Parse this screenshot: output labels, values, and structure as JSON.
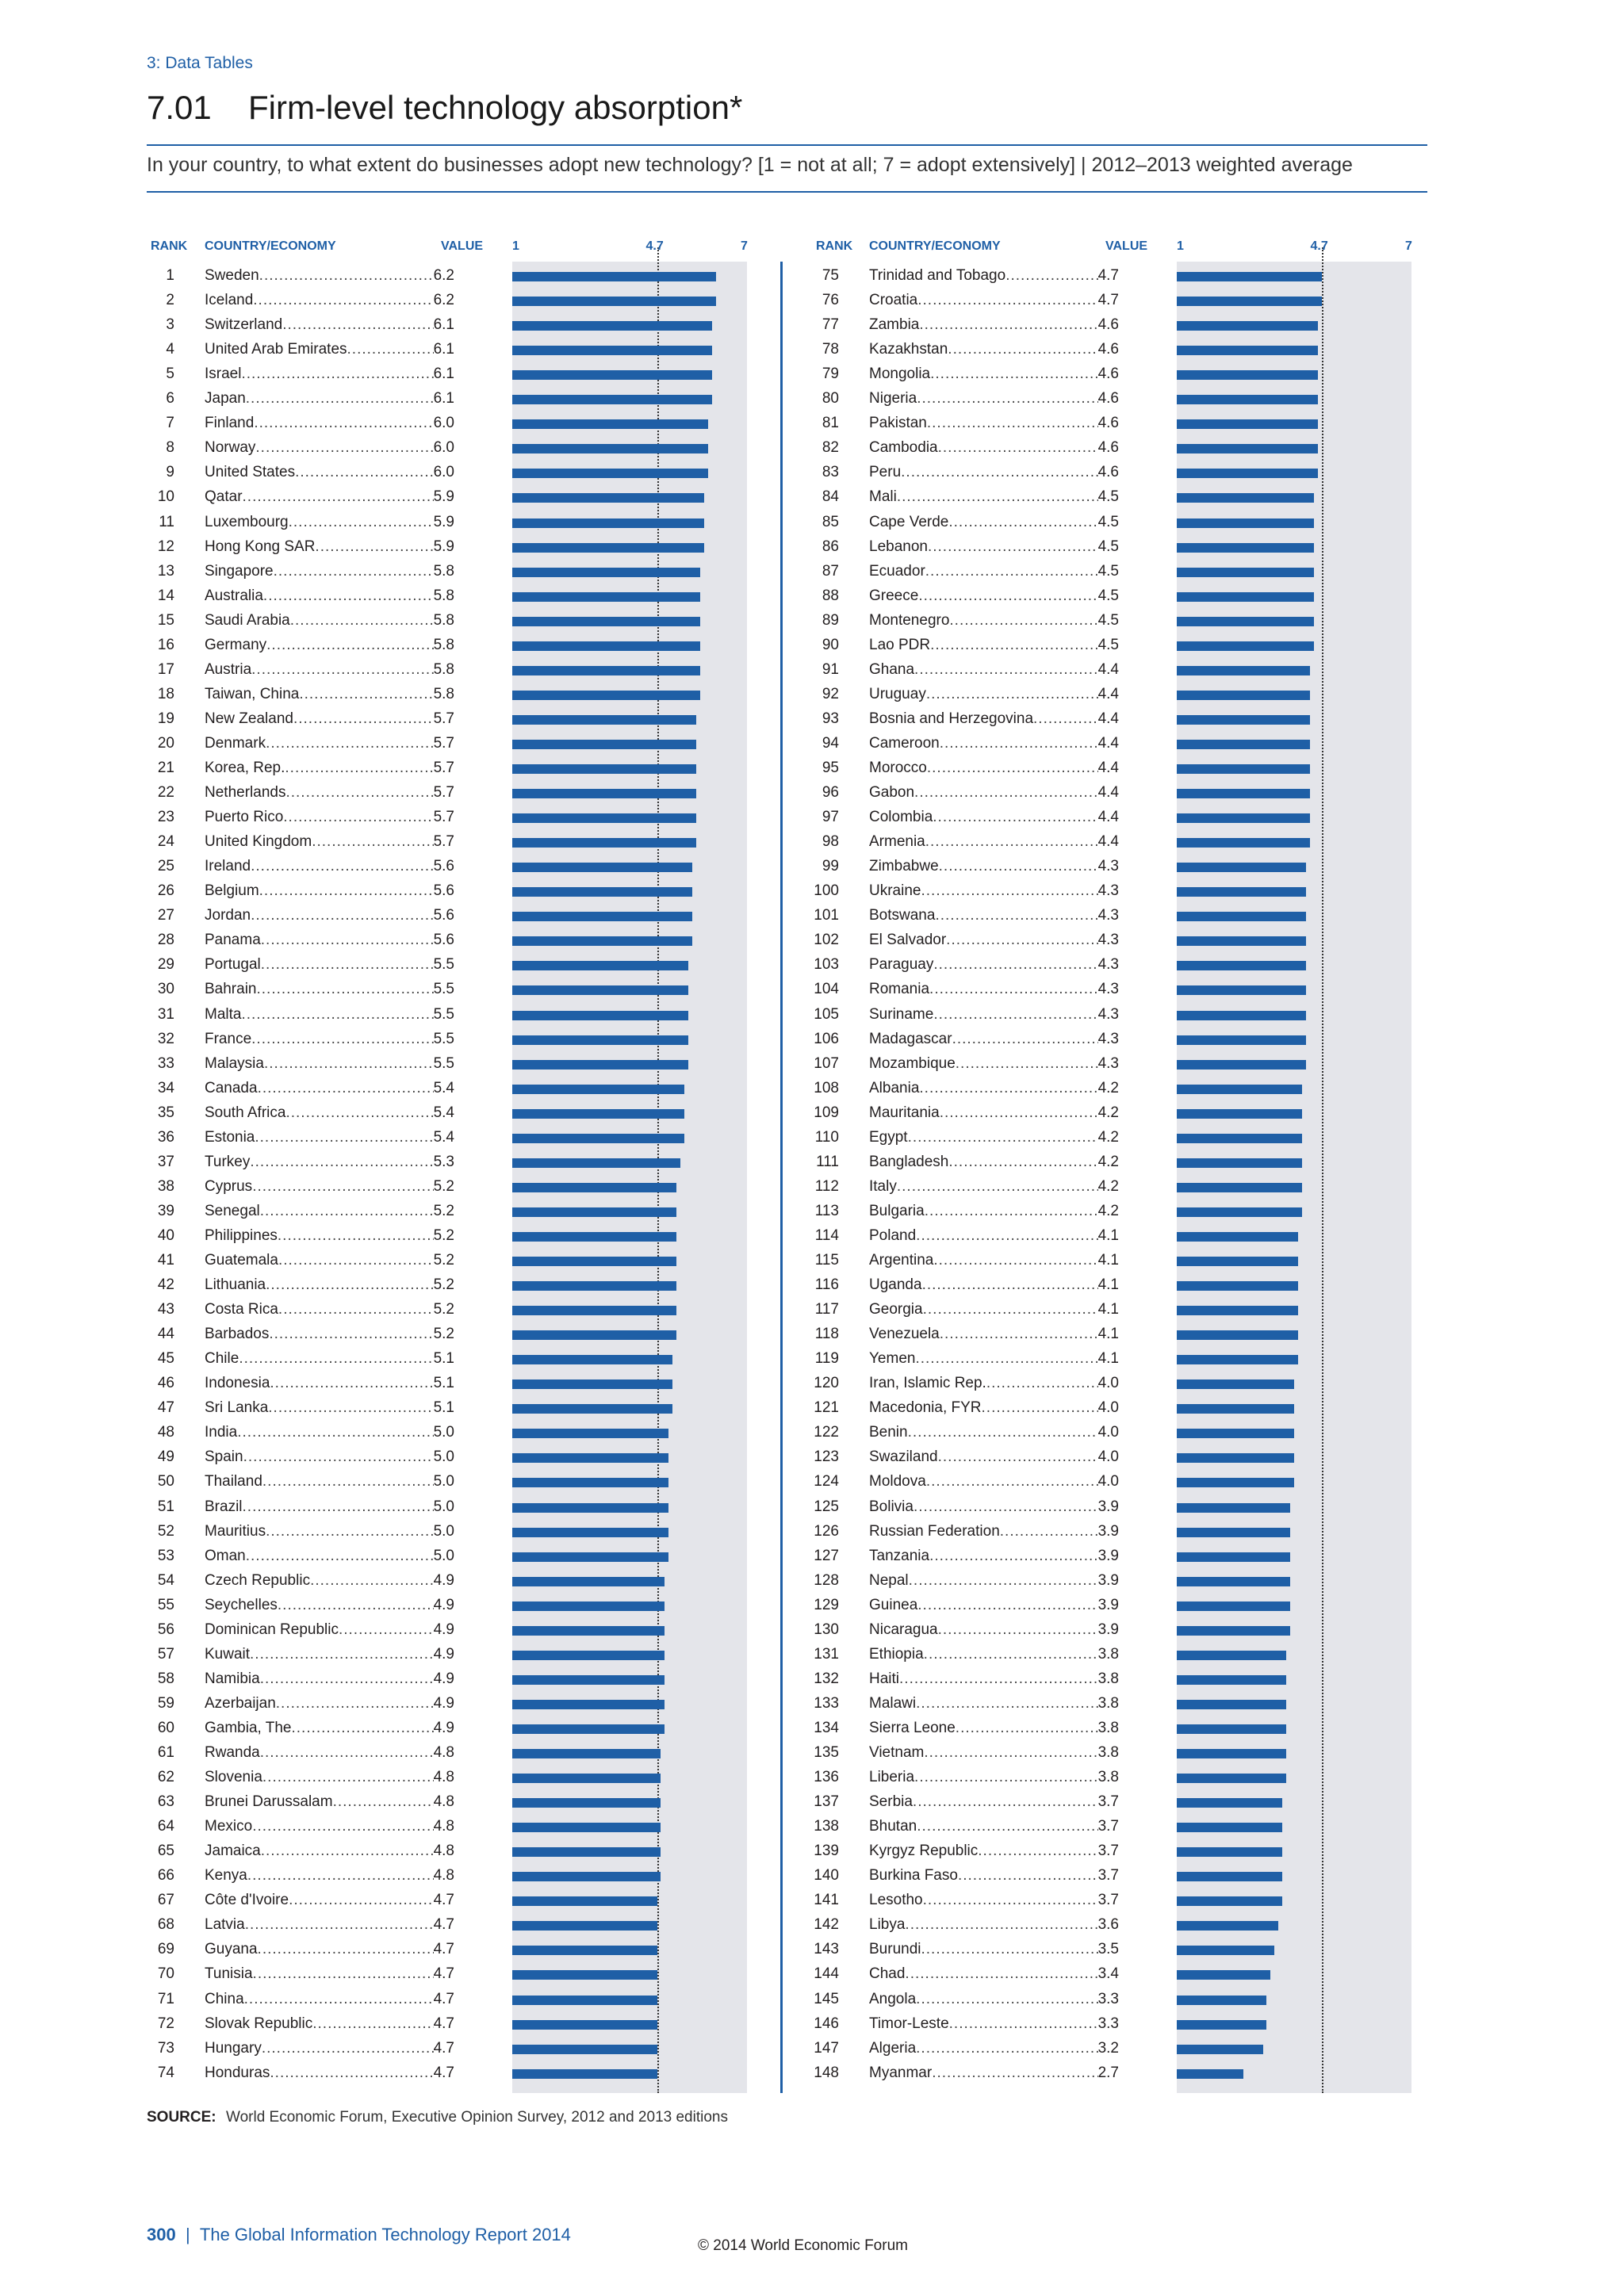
{
  "header": {
    "section": "3: Data Tables",
    "number": "7.01",
    "title": "Firm-level technology absorption*",
    "question": "In your country, to what extent do businesses adopt new technology? [1 = not at all; 7 = adopt extensively]  |  2012–2013 weighted average"
  },
  "columns": {
    "rank": "RANK",
    "country": "COUNTRY/ECONOMY",
    "value": "VALUE"
  },
  "source": {
    "label": "SOURCE:",
    "text": "World Economic Forum, Executive Opinion Survey, 2012 and 2013 editions"
  },
  "footer": {
    "page": "300",
    "separator": "|",
    "report": "The Global Information Technology Report 2014",
    "copyright": "© 2014 World Economic Forum"
  },
  "colors": {
    "bar": "#1f5fa6",
    "plot_bg": "#e4e5ea",
    "accent": "#1f5fa6"
  },
  "chart_data": {
    "type": "bar",
    "orientation": "horizontal",
    "xlim": [
      1,
      7
    ],
    "ticks": [
      "1",
      "4.7",
      "7"
    ],
    "reference_value": 4.7,
    "reference_line": "dotted",
    "categories": [
      "Sweden",
      "Iceland",
      "Switzerland",
      "United Arab Emirates",
      "Israel",
      "Japan",
      "Finland",
      "Norway",
      "United States",
      "Qatar",
      "Luxembourg",
      "Hong Kong SAR",
      "Singapore",
      "Australia",
      "Saudi Arabia",
      "Germany",
      "Austria",
      "Taiwan, China",
      "New Zealand",
      "Denmark",
      "Korea, Rep.",
      "Netherlands",
      "Puerto Rico",
      "United Kingdom",
      "Ireland",
      "Belgium",
      "Jordan",
      "Panama",
      "Portugal",
      "Bahrain",
      "Malta",
      "France",
      "Malaysia",
      "Canada",
      "South Africa",
      "Estonia",
      "Turkey",
      "Cyprus",
      "Senegal",
      "Philippines",
      "Guatemala",
      "Lithuania",
      "Costa Rica",
      "Barbados",
      "Chile",
      "Indonesia",
      "Sri Lanka",
      "India",
      "Spain",
      "Thailand",
      "Brazil",
      "Mauritius",
      "Oman",
      "Czech Republic",
      "Seychelles",
      "Dominican Republic",
      "Kuwait",
      "Namibia",
      "Azerbaijan",
      "Gambia, The",
      "Rwanda",
      "Slovenia",
      "Brunei Darussalam",
      "Mexico",
      "Jamaica",
      "Kenya",
      "Côte d'Ivoire",
      "Latvia",
      "Guyana",
      "Tunisia",
      "China",
      "Slovak Republic",
      "Hungary",
      "Honduras",
      "Trinidad and Tobago",
      "Croatia",
      "Zambia",
      "Kazakhstan",
      "Mongolia",
      "Nigeria",
      "Pakistan",
      "Cambodia",
      "Peru",
      "Mali",
      "Cape Verde",
      "Lebanon",
      "Ecuador",
      "Greece",
      "Montenegro",
      "Lao PDR",
      "Ghana",
      "Uruguay",
      "Bosnia and Herzegovina",
      "Cameroon",
      "Morocco",
      "Gabon",
      "Colombia",
      "Armenia",
      "Zimbabwe",
      "Ukraine",
      "Botswana",
      "El Salvador",
      "Paraguay",
      "Romania",
      "Suriname",
      "Madagascar",
      "Mozambique",
      "Albania",
      "Mauritania",
      "Egypt",
      "Bangladesh",
      "Italy",
      "Bulgaria",
      "Poland",
      "Argentina",
      "Uganda",
      "Georgia",
      "Venezuela",
      "Yemen",
      "Iran, Islamic Rep.",
      "Macedonia, FYR",
      "Benin",
      "Swaziland",
      "Moldova",
      "Bolivia",
      "Russian Federation",
      "Tanzania",
      "Nepal",
      "Guinea",
      "Nicaragua",
      "Ethiopia",
      "Haiti",
      "Malawi",
      "Sierra Leone",
      "Vietnam",
      "Liberia",
      "Serbia",
      "Bhutan",
      "Kyrgyz Republic",
      "Burkina Faso",
      "Lesotho",
      "Libya",
      "Burundi",
      "Chad",
      "Angola",
      "Timor-Leste",
      "Algeria",
      "Myanmar"
    ],
    "values": [
      "6.2",
      "6.2",
      "6.1",
      "6.1",
      "6.1",
      "6.1",
      "6.0",
      "6.0",
      "6.0",
      "5.9",
      "5.9",
      "5.9",
      "5.8",
      "5.8",
      "5.8",
      "5.8",
      "5.8",
      "5.8",
      "5.7",
      "5.7",
      "5.7",
      "5.7",
      "5.7",
      "5.7",
      "5.6",
      "5.6",
      "5.6",
      "5.6",
      "5.5",
      "5.5",
      "5.5",
      "5.5",
      "5.5",
      "5.4",
      "5.4",
      "5.4",
      "5.3",
      "5.2",
      "5.2",
      "5.2",
      "5.2",
      "5.2",
      "5.2",
      "5.2",
      "5.1",
      "5.1",
      "5.1",
      "5.0",
      "5.0",
      "5.0",
      "5.0",
      "5.0",
      "5.0",
      "4.9",
      "4.9",
      "4.9",
      "4.9",
      "4.9",
      "4.9",
      "4.9",
      "4.8",
      "4.8",
      "4.8",
      "4.8",
      "4.8",
      "4.8",
      "4.7",
      "4.7",
      "4.7",
      "4.7",
      "4.7",
      "4.7",
      "4.7",
      "4.7",
      "4.7",
      "4.7",
      "4.6",
      "4.6",
      "4.6",
      "4.6",
      "4.6",
      "4.6",
      "4.6",
      "4.5",
      "4.5",
      "4.5",
      "4.5",
      "4.5",
      "4.5",
      "4.5",
      "4.4",
      "4.4",
      "4.4",
      "4.4",
      "4.4",
      "4.4",
      "4.4",
      "4.4",
      "4.3",
      "4.3",
      "4.3",
      "4.3",
      "4.3",
      "4.3",
      "4.3",
      "4.3",
      "4.3",
      "4.2",
      "4.2",
      "4.2",
      "4.2",
      "4.2",
      "4.2",
      "4.1",
      "4.1",
      "4.1",
      "4.1",
      "4.1",
      "4.1",
      "4.0",
      "4.0",
      "4.0",
      "4.0",
      "4.0",
      "3.9",
      "3.9",
      "3.9",
      "3.9",
      "3.9",
      "3.9",
      "3.8",
      "3.8",
      "3.8",
      "3.8",
      "3.8",
      "3.8",
      "3.7",
      "3.7",
      "3.7",
      "3.7",
      "3.7",
      "3.6",
      "3.5",
      "3.4",
      "3.3",
      "3.3",
      "3.2",
      "2.7"
    ]
  }
}
